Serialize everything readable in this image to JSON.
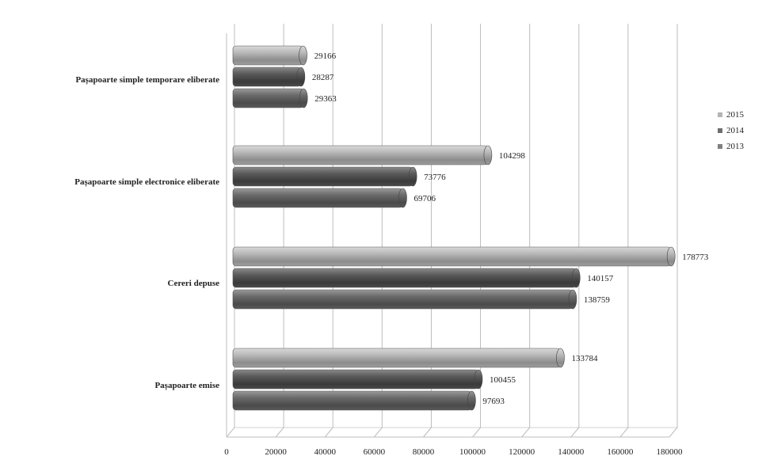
{
  "chart_data": {
    "type": "bar",
    "orientation": "horizontal",
    "style": "3d-cylinder",
    "categories": [
      "Pașapoarte simple temporare eliberate",
      "Pașapoarte simple electronice eliberate",
      "Cereri depuse",
      "Pașapoarte emise"
    ],
    "series": [
      {
        "name": "2015",
        "color": "#b4b4b4",
        "values": [
          29166,
          104298,
          178773,
          133784
        ]
      },
      {
        "name": "2014",
        "color": "#6e6e6e",
        "values": [
          28287,
          73776,
          140157,
          100455
        ]
      },
      {
        "name": "2013",
        "color": "#808080",
        "values": [
          29363,
          69706,
          138759,
          97693
        ]
      }
    ],
    "data_labels": [
      [
        "29166",
        "104298",
        "178773",
        "133784"
      ],
      [
        "28287",
        "73776",
        "140157",
        "100455"
      ],
      [
        "29363",
        "69706",
        "138759",
        "97693"
      ]
    ],
    "xlim": [
      0,
      180000
    ],
    "ticks": [
      0,
      20000,
      40000,
      60000,
      80000,
      100000,
      120000,
      140000,
      160000,
      180000
    ],
    "tick_labels": [
      "0",
      "20000",
      "40000",
      "60000",
      "80000",
      "100000",
      "120000",
      "140000",
      "160000",
      "180000"
    ],
    "grid": true,
    "legend_position": "right",
    "legend": [
      "2015",
      "2014",
      "2013"
    ],
    "title": "",
    "xlabel": "",
    "ylabel": ""
  }
}
